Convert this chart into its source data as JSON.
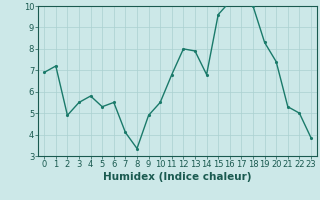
{
  "xlabel": "Humidex (Indice chaleur)",
  "ylabel": "",
  "x": [
    0,
    1,
    2,
    3,
    4,
    5,
    6,
    7,
    8,
    9,
    10,
    11,
    12,
    13,
    14,
    15,
    16,
    17,
    18,
    19,
    20,
    21,
    22,
    23
  ],
  "y": [
    6.9,
    7.2,
    4.9,
    5.5,
    5.8,
    5.3,
    5.5,
    4.1,
    3.35,
    4.9,
    5.5,
    6.8,
    8.0,
    7.9,
    6.8,
    9.6,
    10.2,
    10.1,
    10.0,
    8.3,
    7.4,
    5.3,
    5.0,
    3.85
  ],
  "line_color": "#1a7a6a",
  "marker_color": "#1a7a6a",
  "bg_color": "#cce8e8",
  "grid_color": "#aad0d0",
  "axis_label_color": "#1a5a50",
  "tick_color": "#1a5a50",
  "ylim": [
    3,
    10
  ],
  "xlim": [
    -0.5,
    23.5
  ],
  "yticks": [
    3,
    4,
    5,
    6,
    7,
    8,
    9,
    10
  ],
  "xticks": [
    0,
    1,
    2,
    3,
    4,
    5,
    6,
    7,
    8,
    9,
    10,
    11,
    12,
    13,
    14,
    15,
    16,
    17,
    18,
    19,
    20,
    21,
    22,
    23
  ],
  "tick_fontsize": 6,
  "xlabel_fontsize": 7.5,
  "linewidth": 1.0,
  "markersize": 2.5
}
